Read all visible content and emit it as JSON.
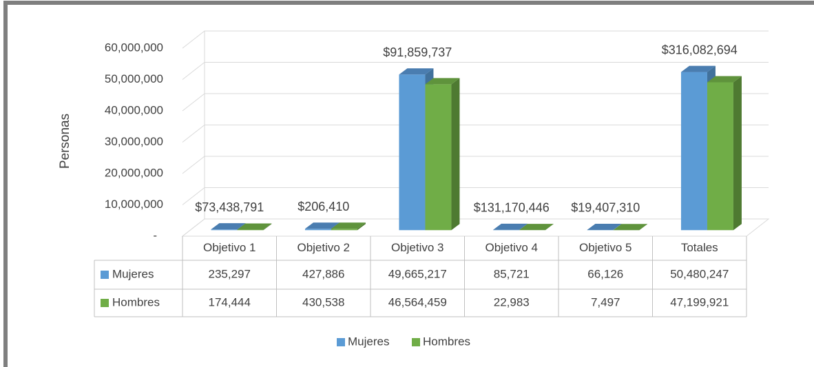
{
  "chart_data": {
    "type": "bar3d",
    "y_label": "Personas",
    "categories": [
      "Objetivo 1",
      "Objetivo 2",
      "Objetivo 3",
      "Objetivo 4",
      "Objetivo 5",
      "Totales"
    ],
    "series": [
      {
        "name": "Mujeres",
        "color": "#5b9bd5",
        "side_color": "#41719c",
        "top_color": "#4a7db0",
        "values": [
          235297,
          427886,
          49665217,
          85721,
          66126,
          50480247
        ],
        "value_labels": [
          "235,297",
          "427,886",
          "49,665,217",
          "85,721",
          "66,126",
          "50,480,247"
        ]
      },
      {
        "name": "Hombres",
        "color": "#70ad47",
        "side_color": "#4e7a31",
        "top_color": "#5f933c",
        "values": [
          174444,
          430538,
          46564459,
          22983,
          7497,
          47199921
        ],
        "value_labels": [
          "174,444",
          "430,538",
          "46,564,459",
          "22,983",
          "7,497",
          "47,199,921"
        ]
      }
    ],
    "annotations": [
      "$73,438,791",
      "$206,410",
      "$91,859,737",
      "$131,170,446",
      "$19,407,310",
      "$316,082,694"
    ],
    "ylim": [
      0,
      60000000
    ],
    "yticks": [
      {
        "value": 0,
        "label": "-"
      },
      {
        "value": 10000000,
        "label": "10,000,000"
      },
      {
        "value": 20000000,
        "label": "20,000,000"
      },
      {
        "value": 30000000,
        "label": "30,000,000"
      },
      {
        "value": 40000000,
        "label": "40,000,000"
      },
      {
        "value": 50000000,
        "label": "50,000,000"
      },
      {
        "value": 60000000,
        "label": "60,000,000"
      }
    ],
    "grid": true,
    "legend": "bottom",
    "data_table": true
  }
}
